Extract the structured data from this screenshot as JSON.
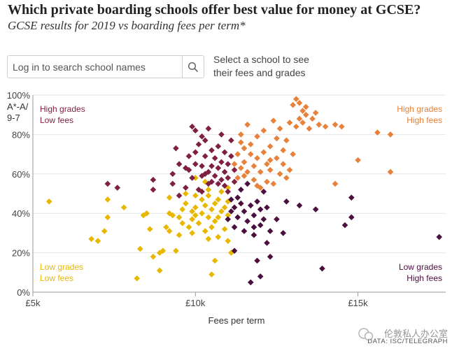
{
  "title": "Which private boarding schools offer best value for money at GCSE?",
  "subtitle": "GCSE results for 2019 vs boarding fees per term*",
  "search": {
    "placeholder": "Log in to search school names",
    "hint": "Select a school to see their fees and grades"
  },
  "source": "DATA: ISC/TELEGRAPH",
  "watermark": "伦敦私人办公室",
  "colors": {
    "low_grades_low_fees": "#e8b800",
    "low_grades_high_fees": "#4a0f3e",
    "high_grades_low_fees": "#7e1f44",
    "high_grades_high_fees": "#e8813a",
    "axis": "#999999",
    "grid": "#e6e6e6"
  },
  "chart_data": {
    "type": "scatter",
    "title": "Which private boarding schools offer best value for money at GCSE?",
    "subtitle": "GCSE results for 2019 vs boarding fees per term*",
    "xlabel": "Fees per term",
    "ylabel": "A*-A/ 9-7",
    "xlim": [
      5000,
      17700
    ],
    "ylim": [
      0,
      100
    ],
    "x_ticks": [
      5000,
      10000,
      15000
    ],
    "x_tick_labels": [
      "£5k",
      "£10k",
      "£15k"
    ],
    "y_ticks": [
      0,
      20,
      40,
      60,
      80,
      100
    ],
    "y_tick_labels": [
      "0%",
      "20%",
      "40%",
      "60%",
      "80%",
      "100%"
    ],
    "grid": "horizontal",
    "quadrant_labels": [
      {
        "lines": [
          "High grades",
          "Low fees"
        ],
        "position": "top-left",
        "color": "#7e1f44"
      },
      {
        "lines": [
          "High grades",
          "High fees"
        ],
        "position": "top-right",
        "color": "#e8813a"
      },
      {
        "lines": [
          "Low grades",
          "Low fees"
        ],
        "position": "bottom-left",
        "color": "#e8b800"
      },
      {
        "lines": [
          "Low grades",
          "High fees"
        ],
        "position": "bottom-right",
        "color": "#4a0f3e"
      }
    ],
    "series": [
      {
        "key": "low_grades_low_fees",
        "points": [
          [
            5500,
            46
          ],
          [
            6800,
            27
          ],
          [
            7000,
            26
          ],
          [
            7200,
            31
          ],
          [
            7300,
            38
          ],
          [
            7300,
            47
          ],
          [
            7800,
            43
          ],
          [
            8200,
            7
          ],
          [
            8300,
            22
          ],
          [
            8400,
            39
          ],
          [
            8500,
            40
          ],
          [
            8600,
            32
          ],
          [
            8700,
            18
          ],
          [
            8900,
            11
          ],
          [
            8900,
            20
          ],
          [
            9000,
            21
          ],
          [
            9100,
            33
          ],
          [
            9200,
            31
          ],
          [
            9200,
            40
          ],
          [
            9200,
            48
          ],
          [
            9300,
            39
          ],
          [
            9400,
            21
          ],
          [
            9500,
            29
          ],
          [
            9500,
            38
          ],
          [
            9600,
            35
          ],
          [
            9600,
            42
          ],
          [
            9700,
            45
          ],
          [
            9700,
            50
          ],
          [
            9800,
            33
          ],
          [
            9900,
            37
          ],
          [
            9900,
            41
          ],
          [
            9900,
            30
          ],
          [
            10000,
            39
          ],
          [
            10000,
            43
          ],
          [
            10000,
            49
          ],
          [
            10100,
            35
          ],
          [
            10200,
            40
          ],
          [
            10200,
            47
          ],
          [
            10300,
            31
          ],
          [
            10300,
            44
          ],
          [
            10400,
            27
          ],
          [
            10400,
            38
          ],
          [
            10400,
            49
          ],
          [
            10500,
            33
          ],
          [
            10500,
            42
          ],
          [
            10500,
            9
          ],
          [
            10600,
            16
          ],
          [
            10600,
            36
          ],
          [
            10600,
            45
          ],
          [
            10700,
            28
          ],
          [
            10700,
            38
          ],
          [
            10700,
            47
          ],
          [
            10800,
            41
          ],
          [
            10800,
            51
          ],
          [
            10900,
            32
          ],
          [
            10900,
            43
          ],
          [
            11000,
            26
          ],
          [
            11000,
            39
          ],
          [
            11000,
            46
          ],
          [
            11000,
            53
          ],
          [
            11100,
            20
          ],
          [
            10300,
            56
          ],
          [
            10400,
            52
          ],
          [
            10000,
            58
          ]
        ]
      },
      {
        "key": "high_grades_low_fees",
        "points": [
          [
            7300,
            55
          ],
          [
            7600,
            53
          ],
          [
            8700,
            57
          ],
          [
            8700,
            52
          ],
          [
            9300,
            60
          ],
          [
            9300,
            55
          ],
          [
            9400,
            73
          ],
          [
            9500,
            65
          ],
          [
            9700,
            53
          ],
          [
            9700,
            63
          ],
          [
            9800,
            69
          ],
          [
            9800,
            62
          ],
          [
            9900,
            58
          ],
          [
            10000,
            82
          ],
          [
            10000,
            71
          ],
          [
            10000,
            65
          ],
          [
            10100,
            52
          ],
          [
            10200,
            79
          ],
          [
            10200,
            64
          ],
          [
            10200,
            59
          ],
          [
            10300,
            77
          ],
          [
            10300,
            69
          ],
          [
            10300,
            60
          ],
          [
            10400,
            55
          ],
          [
            10400,
            83
          ],
          [
            10400,
            61
          ],
          [
            10500,
            72
          ],
          [
            10500,
            64
          ],
          [
            10500,
            56
          ],
          [
            10600,
            68
          ],
          [
            10600,
            59
          ],
          [
            10700,
            74
          ],
          [
            10700,
            63
          ],
          [
            10700,
            55
          ],
          [
            10800,
            66
          ],
          [
            10800,
            57
          ],
          [
            10900,
            71
          ],
          [
            10900,
            61
          ],
          [
            10900,
            54
          ],
          [
            11000,
            65
          ],
          [
            11000,
            58
          ],
          [
            11000,
            51
          ],
          [
            11100,
            77
          ],
          [
            11100,
            69
          ],
          [
            11200,
            62
          ],
          [
            11200,
            56
          ],
          [
            10100,
            75
          ],
          [
            10800,
            80
          ],
          [
            9900,
            84
          ],
          [
            10200,
            51
          ],
          [
            9500,
            49
          ]
        ]
      },
      {
        "key": "high_grades_high_fees",
        "points": [
          [
            11200,
            65
          ],
          [
            11300,
            70
          ],
          [
            11300,
            58
          ],
          [
            11400,
            76
          ],
          [
            11400,
            63
          ],
          [
            11400,
            80
          ],
          [
            11500,
            66
          ],
          [
            11500,
            73
          ],
          [
            11600,
            85
          ],
          [
            11600,
            61
          ],
          [
            11700,
            70
          ],
          [
            11700,
            75
          ],
          [
            11800,
            57
          ],
          [
            11800,
            64
          ],
          [
            11900,
            79
          ],
          [
            11900,
            68
          ],
          [
            12000,
            53
          ],
          [
            12000,
            61
          ],
          [
            12100,
            71
          ],
          [
            12100,
            82
          ],
          [
            12200,
            56
          ],
          [
            12200,
            65
          ],
          [
            12300,
            74
          ],
          [
            12300,
            62
          ],
          [
            12400,
            87
          ],
          [
            12400,
            55
          ],
          [
            12500,
            68
          ],
          [
            12500,
            78
          ],
          [
            12600,
            83
          ],
          [
            12600,
            60
          ],
          [
            12700,
            72
          ],
          [
            12700,
            65
          ],
          [
            12800,
            58
          ],
          [
            12800,
            77
          ],
          [
            12900,
            86
          ],
          [
            12900,
            62
          ],
          [
            13000,
            95
          ],
          [
            13000,
            70
          ],
          [
            13100,
            98
          ],
          [
            13100,
            84
          ],
          [
            13200,
            96
          ],
          [
            13200,
            88
          ],
          [
            13300,
            92
          ],
          [
            13300,
            86
          ],
          [
            13400,
            90
          ],
          [
            13400,
            94
          ],
          [
            13500,
            83
          ],
          [
            13600,
            88
          ],
          [
            13700,
            91
          ],
          [
            13800,
            85
          ],
          [
            14000,
            84
          ],
          [
            14300,
            85
          ],
          [
            14300,
            55
          ],
          [
            14500,
            84
          ],
          [
            15000,
            67
          ],
          [
            15600,
            81
          ],
          [
            16000,
            80
          ],
          [
            16000,
            61
          ],
          [
            12300,
            67
          ],
          [
            11900,
            54
          ],
          [
            11500,
            59
          ]
        ]
      },
      {
        "key": "low_grades_high_fees",
        "points": [
          [
            11000,
            37
          ],
          [
            11100,
            41
          ],
          [
            11100,
            47
          ],
          [
            11200,
            33
          ],
          [
            11200,
            43
          ],
          [
            11200,
            21
          ],
          [
            11300,
            48
          ],
          [
            11300,
            38
          ],
          [
            11400,
            45
          ],
          [
            11500,
            31
          ],
          [
            11500,
            41
          ],
          [
            11600,
            36
          ],
          [
            11600,
            55
          ],
          [
            11700,
            44
          ],
          [
            11700,
            5
          ],
          [
            11800,
            29
          ],
          [
            11800,
            39
          ],
          [
            11900,
            46
          ],
          [
            11900,
            16
          ],
          [
            12000,
            34
          ],
          [
            12000,
            42
          ],
          [
            12000,
            8
          ],
          [
            12100,
            51
          ],
          [
            12100,
            37
          ],
          [
            12200,
            25
          ],
          [
            12200,
            43
          ],
          [
            12300,
            31
          ],
          [
            12300,
            18
          ],
          [
            12500,
            37
          ],
          [
            12700,
            30
          ],
          [
            12800,
            46
          ],
          [
            13200,
            44
          ],
          [
            13700,
            42
          ],
          [
            13900,
            12
          ],
          [
            14600,
            34
          ],
          [
            14800,
            38
          ],
          [
            14800,
            48
          ],
          [
            17500,
            28
          ],
          [
            11400,
            52
          ],
          [
            11800,
            33
          ]
        ]
      }
    ]
  }
}
